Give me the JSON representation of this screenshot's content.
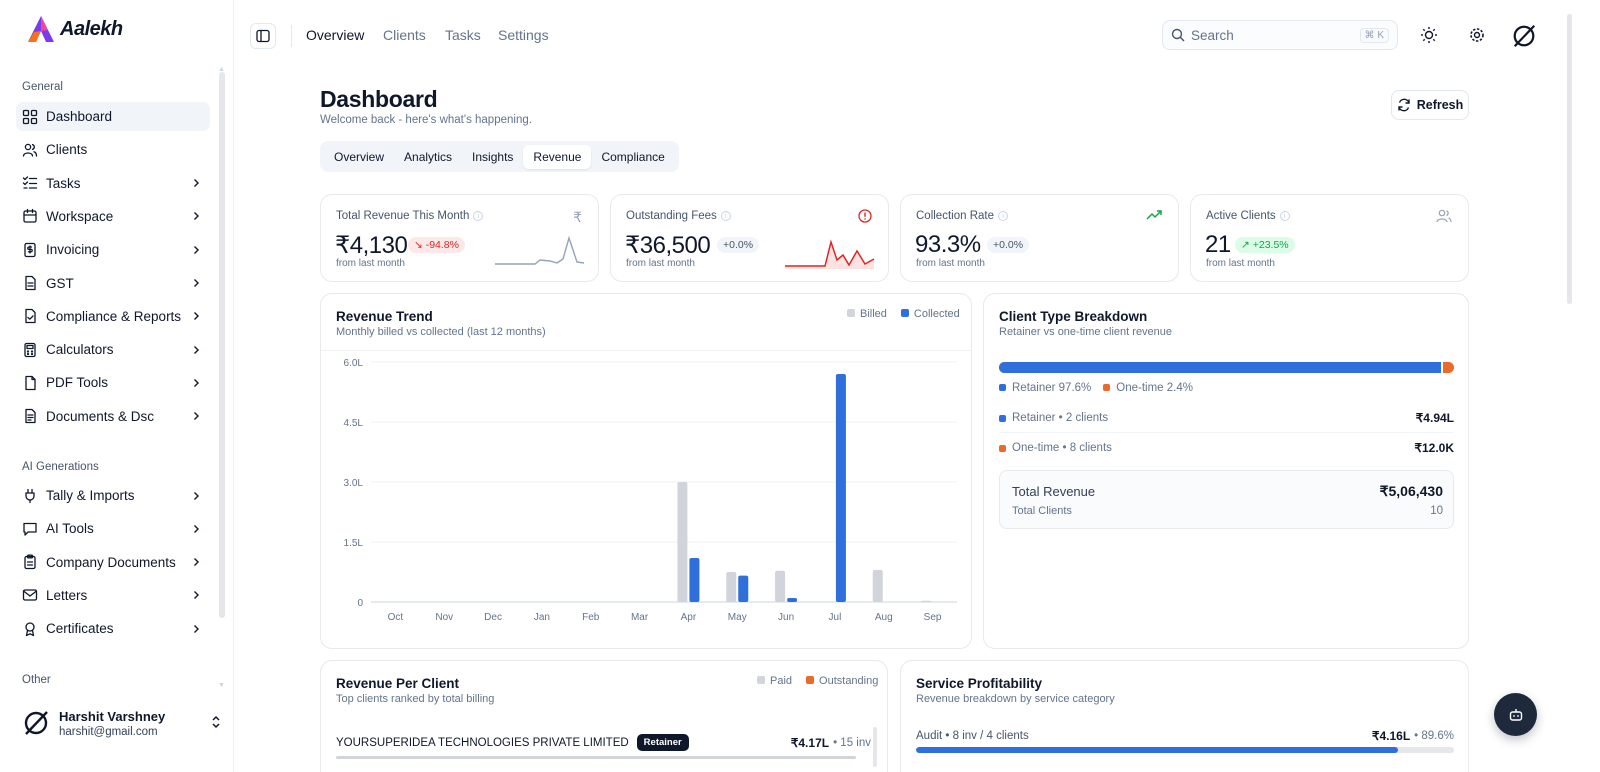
{
  "app": {
    "brand": "Aalekh"
  },
  "sidebar": {
    "section_general": "General",
    "section_ai": "AI Generations",
    "section_other": "Other",
    "items": [
      {
        "label": "Dashboard",
        "icon": "dashboard-icon",
        "active": true
      },
      {
        "label": "Clients",
        "icon": "users-icon"
      },
      {
        "label": "Tasks",
        "icon": "checklist-icon"
      },
      {
        "label": "Workspace",
        "icon": "calendar-icon"
      },
      {
        "label": "Invoicing",
        "icon": "invoice-icon"
      },
      {
        "label": "GST",
        "icon": "document-icon"
      },
      {
        "label": "Compliance & Reports",
        "icon": "file-check-icon"
      },
      {
        "label": "Calculators",
        "icon": "calculator-icon"
      },
      {
        "label": "PDF Tools",
        "icon": "file-icon"
      },
      {
        "label": "Documents & Dsc",
        "icon": "file-text-icon"
      }
    ],
    "ai_items": [
      {
        "label": "Tally & Imports",
        "icon": "plug-icon"
      },
      {
        "label": "AI Tools",
        "icon": "message-icon"
      },
      {
        "label": "Company Documents",
        "icon": "clipboard-icon"
      },
      {
        "label": "Letters",
        "icon": "mail-icon"
      },
      {
        "label": "Certificates",
        "icon": "award-icon"
      }
    ],
    "user": {
      "name": "Harshit Varshney",
      "email": "harshit@gmail.com"
    }
  },
  "topbar": {
    "nav": [
      "Overview",
      "Clients",
      "Tasks",
      "Settings"
    ],
    "search_placeholder": "Search",
    "search_shortcut": "⌘ K"
  },
  "header": {
    "title": "Dashboard",
    "subtitle": "Welcome back - here's what's happening.",
    "refresh_label": "Refresh",
    "tabs": [
      "Overview",
      "Analytics",
      "Insights",
      "Revenue",
      "Compliance"
    ],
    "active_tab": "Revenue"
  },
  "kpis": [
    {
      "title": "Total Revenue This Month",
      "value": "₹4,130",
      "change": "-94.8%",
      "foot": "from last month",
      "icon": "rupee-icon",
      "spark": [
        0.1,
        0.1,
        0.1,
        0.1,
        0.1,
        0.15,
        0.12,
        0.75,
        0.1
      ]
    },
    {
      "title": "Outstanding Fees",
      "value": "₹36,500",
      "change": "+0.0%",
      "foot": "from last month",
      "icon": "alert-icon",
      "spark": [
        0.05,
        0.05,
        0.05,
        0.05,
        0.8,
        0.2,
        0.5,
        0.15,
        0.4,
        0.1
      ]
    },
    {
      "title": "Collection Rate",
      "value": "93.3%",
      "change": "+0.0%",
      "foot": "from last month",
      "icon": "trending-up-icon"
    },
    {
      "title": "Active Clients",
      "value": "21",
      "change": "+23.5%",
      "foot": "from last month",
      "icon": "users-icon"
    }
  ],
  "revenue_trend": {
    "title": "Revenue Trend",
    "subtitle": "Monthly billed vs collected (last 12 months)"
  },
  "chart_data": {
    "type": "bar",
    "title": "Revenue Trend",
    "categories": [
      "Oct",
      "Nov",
      "Dec",
      "Jan",
      "Feb",
      "Mar",
      "Apr",
      "May",
      "Jun",
      "Jul",
      "Aug",
      "Sep"
    ],
    "y_ticks": [
      "6.0L",
      "4.5L",
      "3.0L",
      "1.5L",
      "0"
    ],
    "ylim": [
      0,
      6.0
    ],
    "series": [
      {
        "name": "Billed",
        "color": "#d1d5db",
        "values": [
          0,
          0,
          0,
          0,
          0,
          0,
          3.0,
          0.75,
          0.78,
          0,
          0.8,
          0.03
        ]
      },
      {
        "name": "Collected",
        "color": "#2f6fdb",
        "values": [
          0,
          0,
          0,
          0,
          0,
          0,
          1.1,
          0.66,
          0.1,
          5.7,
          0,
          0
        ]
      }
    ],
    "legend": "top-right",
    "grid": true
  },
  "client_breakdown": {
    "title": "Client Type Breakdown",
    "subtitle": "Retainer vs one-time client revenue",
    "retainer_pct": 97.6,
    "legend_retainer": "Retainer 97.6%",
    "legend_onetime": "One-time 2.4%",
    "row1_label": "Retainer • 2 clients",
    "row1_amount": "₹4.94L",
    "row2_label": "One-time • 8 clients",
    "row2_amount": "₹12.0K",
    "total_revenue_label": "Total Revenue",
    "total_revenue": "₹5,06,430",
    "total_clients_label": "Total Clients",
    "total_clients": "10",
    "colors": {
      "retainer": "#2f6fdb",
      "onetime": "#ea6a2e"
    }
  },
  "revenue_per_client": {
    "title": "Revenue Per Client",
    "subtitle": "Top clients ranked by total billing",
    "legend_paid": "Paid",
    "legend_outstanding": "Outstanding",
    "rows": [
      {
        "name": "YOURSUPERIDEA TECHNOLOGIES PRIVATE LIMITED",
        "badge": "Retainer",
        "amount": "₹4.17L",
        "invoices": "• 15 inv"
      }
    ]
  },
  "service_profitability": {
    "title": "Service Profitability",
    "subtitle": "Revenue breakdown by service category",
    "rows": [
      {
        "label": "Audit • 8 inv / 4 clients",
        "amount": "₹4.16L",
        "pct": "• 89.6%",
        "fraction": 0.896
      }
    ]
  }
}
